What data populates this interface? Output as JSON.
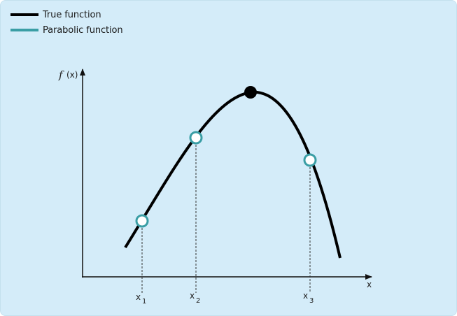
{
  "legend": {
    "items": [
      {
        "label": "True function",
        "color": "#000000"
      },
      {
        "label": "Parabolic function",
        "color": "#3a9ea5"
      }
    ]
  },
  "axes": {
    "y_label_italic": "f",
    "y_label_rest": "(x)",
    "x_label": "x"
  },
  "points": [
    {
      "label": "x",
      "subscript": "1"
    },
    {
      "label": "x",
      "subscript": "2"
    },
    {
      "label": "x",
      "subscript": "3"
    }
  ],
  "colors": {
    "background": "#d4ecf9",
    "curve": "#000000",
    "marker_stroke": "#3a9ea5",
    "marker_fill": "#ffffff"
  }
}
